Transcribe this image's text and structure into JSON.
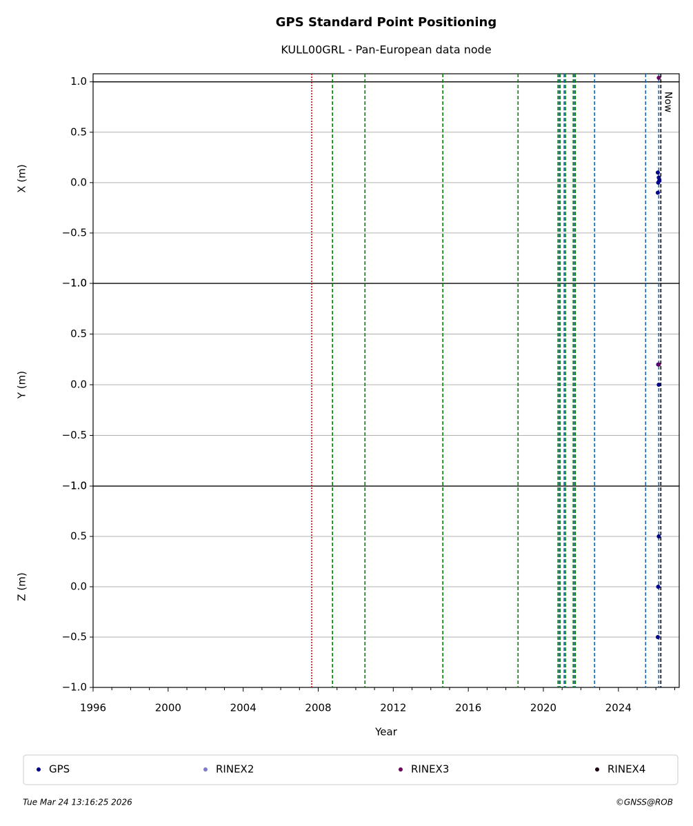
{
  "chart_data": {
    "type": "scatter",
    "title": "GPS Standard Point Positioning",
    "subtitle": "KULL00GRL - Pan-European data node",
    "xlabel": "Year",
    "xlim": [
      1996,
      2027.24
    ],
    "xticks": [
      1996,
      2000,
      2004,
      2008,
      2012,
      2016,
      2020,
      2024
    ],
    "xminorticks": [
      1997,
      1998,
      1999,
      2001,
      2002,
      2003,
      2005,
      2006,
      2007,
      2009,
      2010,
      2011,
      2013,
      2014,
      2015,
      2017,
      2018,
      2019,
      2021,
      2022,
      2023,
      2025,
      2026,
      2027
    ],
    "grid": true,
    "panels": [
      {
        "ylabel": "X (m)",
        "ylim": [
          -1,
          1.08
        ],
        "hline": 1,
        "yticks": [
          {
            "value": -1,
            "label": "−1.0"
          },
          {
            "value": -0.5,
            "label": "−0.5"
          },
          {
            "value": 0,
            "label": "0.0"
          },
          {
            "value": 0.5,
            "label": "0.5"
          },
          {
            "value": 1,
            "label": "1.0"
          }
        ]
      },
      {
        "ylabel": "Y (m)",
        "ylim": [
          -1,
          1
        ],
        "yticks": [
          {
            "value": -1,
            "label": "−1.0"
          },
          {
            "value": -0.5,
            "label": "−0.5"
          },
          {
            "value": 0,
            "label": "0.0"
          },
          {
            "value": 0.5,
            "label": "0.5"
          },
          {
            "value": 1,
            "label": "1.0"
          }
        ]
      },
      {
        "ylabel": "Z (m)",
        "ylim": [
          -1,
          1
        ],
        "yticks": [
          {
            "value": -1,
            "label": "−1.0"
          },
          {
            "value": -0.5,
            "label": "−0.5"
          },
          {
            "value": 0,
            "label": "0.0"
          },
          {
            "value": 0.5,
            "label": "0.5"
          },
          {
            "value": 1,
            "label": "1.0"
          }
        ]
      }
    ],
    "vlines": [
      {
        "color": "#e00000",
        "style": "dotted",
        "x": [
          2007.65
        ]
      },
      {
        "color": "#008000",
        "style": "dashed",
        "x": [
          2008.76,
          2010.49,
          2014.64,
          2018.65,
          2020.78,
          2020.89,
          2021.11,
          2021.18,
          2021.59,
          2021.7
        ]
      },
      {
        "color": "#1560a8",
        "style": "dashed",
        "x": [
          2020.85,
          2021.11,
          2021.66,
          2022.73,
          2025.45,
          2026.15
        ]
      }
    ],
    "now": {
      "label": "Now",
      "x": 2026.26,
      "color": "#000000"
    },
    "series": [
      {
        "name": "GPS",
        "color": "#00008b",
        "data": [
          {
            "x": [
              2026.1,
              2026.15,
              2026.18,
              2026.12,
              2026.1
            ],
            "values": [
              0.1,
              0.05,
              0.02,
              0,
              -0.1
            ]
          },
          {
            "x": [
              2026.12,
              2026.15
            ],
            "values": [
              0.2,
              0
            ]
          },
          {
            "x": [
              2026.15,
              2026.12,
              2026.1
            ],
            "values": [
              0.5,
              0,
              -0.5
            ]
          }
        ]
      },
      {
        "name": "RINEX2",
        "color": "#7b7bc8",
        "data": [
          {
            "x": [],
            "values": []
          },
          {
            "x": [],
            "values": []
          },
          {
            "x": [],
            "values": []
          }
        ]
      },
      {
        "name": "RINEX3",
        "color": "#6a005f",
        "data": [
          {
            "x": [
              2026.15
            ],
            "values": [
              1.04
            ]
          },
          {
            "x": [
              2026.15
            ],
            "values": [
              0.2
            ]
          },
          {
            "x": [],
            "values": []
          }
        ]
      },
      {
        "name": "RINEX4",
        "color": "#1a0010",
        "data": [
          {
            "x": [],
            "values": []
          },
          {
            "x": [],
            "values": []
          },
          {
            "x": [],
            "values": []
          }
        ]
      }
    ],
    "timestamp": "Tue Mar 24 13:16:25 2026",
    "credit": "©GNSS@ROB"
  }
}
